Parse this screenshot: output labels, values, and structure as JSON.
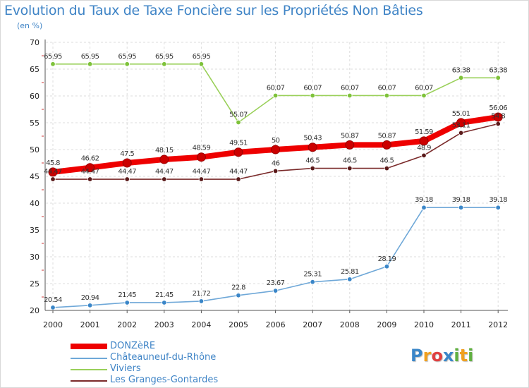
{
  "chart_data": {
    "type": "line",
    "title": "Evolution du Taux de Taxe Foncière sur les Propriétés Non Bâties",
    "ylabel": "(en %)",
    "xlabel": "",
    "ylim": [
      20,
      70
    ],
    "yticks": [
      "20",
      "25",
      "30",
      "35",
      "40",
      "45",
      "50",
      "55",
      "60",
      "65",
      "70"
    ],
    "categories": [
      "2000",
      "2001",
      "2002",
      "2003",
      "2004",
      "2005",
      "2006",
      "2007",
      "2008",
      "2009",
      "2010",
      "2011",
      "2012"
    ],
    "series": [
      {
        "name": "Viviers",
        "color": "#9ad05a",
        "marker": "#7ec23a",
        "values": [
          65.95,
          65.95,
          65.95,
          65.95,
          65.95,
          55.07,
          60.07,
          60.07,
          60.07,
          60.07,
          60.07,
          63.38,
          63.38
        ],
        "labels": [
          "65.95",
          "65.95",
          "65.95",
          "65.95",
          "65.95",
          "55.07",
          "60.07",
          "60.07",
          "60.07",
          "60.07",
          "60.07",
          "63.38",
          "63.38"
        ]
      },
      {
        "name": "Châteauneuf-du-Rhône",
        "color": "#6fa8d8",
        "marker": "#3a86c8",
        "values": [
          20.54,
          20.94,
          21.45,
          21.45,
          21.72,
          22.8,
          23.67,
          25.31,
          25.81,
          28.19,
          39.18,
          39.18,
          39.18
        ],
        "labels": [
          "20.54",
          "20.94",
          "21.45",
          "21.45",
          "21.72",
          "22.8",
          "23.67",
          "25.31",
          "25.81",
          "28.19",
          "39.18",
          "39.18",
          "39.18"
        ]
      },
      {
        "name": "Les Granges-Gontardes",
        "color": "#7a2a2a",
        "marker": "#5a1a1a",
        "values": [
          44.47,
          44.47,
          44.47,
          44.47,
          44.47,
          44.47,
          46,
          46.5,
          46.5,
          46.5,
          48.9,
          53.11,
          54.8
        ],
        "labels": [
          "44.47",
          "44.47",
          "44.47",
          "44.47",
          "44.47",
          "44.47",
          "46",
          "46.5",
          "46.5",
          "46.5",
          "48.9",
          "53.11",
          "54.8"
        ]
      },
      {
        "name": "DONZèRE",
        "color": "#ee0000",
        "marker": "#cc0000",
        "values": [
          45.8,
          46.62,
          47.5,
          48.15,
          48.59,
          49.51,
          50,
          50.43,
          50.87,
          50.87,
          51.59,
          55.01,
          56.06
        ],
        "labels": [
          "45.8",
          "46.62",
          "47.5",
          "48.15",
          "48.59",
          "49.51",
          "50",
          "50.43",
          "50.87",
          "50.87",
          "51.59",
          "55.01",
          "56.06"
        ]
      }
    ],
    "legend": [
      {
        "name": "DONZèRE",
        "color": "#ee0000"
      },
      {
        "name": "Châteauneuf-du-Rhône",
        "color": "#6fa8d8"
      },
      {
        "name": "Viviers",
        "color": "#9ad05a"
      },
      {
        "name": "Les Granges-Gontardes",
        "color": "#7a2a2a"
      }
    ],
    "grid": true,
    "legend_position": "bottom-left"
  },
  "brand": {
    "letters": [
      "P",
      "r",
      "o",
      "x",
      "i",
      "t",
      "i"
    ],
    "colors": [
      "#3a86c8",
      "#f0a020",
      "#e04040",
      "#3a86c8",
      "#60b040",
      "#f0a020",
      "#60b040"
    ]
  }
}
